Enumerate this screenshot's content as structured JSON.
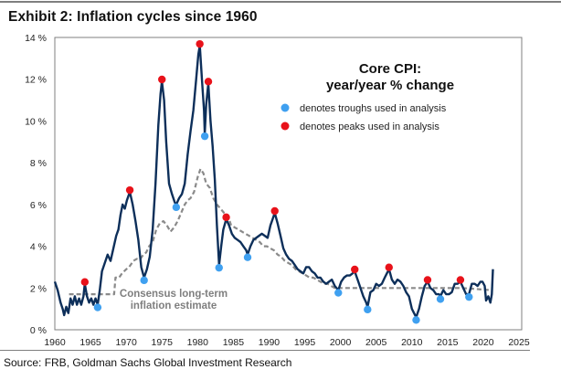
{
  "exhibit": {
    "title": "Exhibit 2: Inflation cycles since 1960",
    "source": "Source: FRB, Goldman Sachs Global Investment Research"
  },
  "chart_data": {
    "type": "line",
    "title": "Exhibit 2: Inflation cycles since 1960",
    "xlabel": "",
    "ylabel": "",
    "xlim": [
      1960,
      2025
    ],
    "ylim": [
      0,
      14
    ],
    "grid": false,
    "x_ticks": [
      "1960",
      "1965",
      "1970",
      "1975",
      "1980",
      "1985",
      "1990",
      "1995",
      "2000",
      "2005",
      "2010",
      "2015",
      "2020",
      "2025"
    ],
    "y_ticks": [
      "0 %",
      "2 %",
      "4 %",
      "6 %",
      "8 %",
      "10 %",
      "12 %",
      "14 %"
    ],
    "y_tick_values": [
      0,
      2,
      4,
      6,
      8,
      10,
      12,
      14
    ],
    "x_tick_values": [
      1960,
      1965,
      1970,
      1975,
      1980,
      1985,
      1990,
      1995,
      2000,
      2005,
      2010,
      2015,
      2020,
      2025
    ],
    "legend": {
      "title_line1": "Core CPI:",
      "title_line2": "year/year % change",
      "placement": "top-right",
      "entries": [
        {
          "label": "denotes troughs used in analysis",
          "color": "#3fa0f0"
        },
        {
          "label": "denotes peaks used in analysis",
          "color": "#e8121a"
        }
      ]
    },
    "annotation": {
      "line1": "Consensus long-term",
      "line2": "inflation estimate"
    },
    "colors": {
      "core_cpi": "#0d2f5a",
      "consensus": "#8a8a8a",
      "trough": "#3fa0f0",
      "peak": "#e8121a",
      "axis": "#7f7f7f"
    },
    "series": [
      {
        "name": "Core CPI year/year % change",
        "style": "solid",
        "points": [
          [
            1960.0,
            2.3
          ],
          [
            1960.4,
            1.9
          ],
          [
            1960.8,
            1.3
          ],
          [
            1961.1,
            1.0
          ],
          [
            1961.3,
            0.7
          ],
          [
            1961.6,
            1.1
          ],
          [
            1961.9,
            0.8
          ],
          [
            1962.2,
            1.5
          ],
          [
            1962.5,
            1.2
          ],
          [
            1962.8,
            1.6
          ],
          [
            1963.1,
            1.2
          ],
          [
            1963.4,
            1.5
          ],
          [
            1963.7,
            1.2
          ],
          [
            1964.0,
            1.6
          ],
          [
            1964.2,
            2.2
          ],
          [
            1964.5,
            1.6
          ],
          [
            1964.8,
            1.3
          ],
          [
            1965.1,
            1.5
          ],
          [
            1965.4,
            1.2
          ],
          [
            1965.7,
            1.5
          ],
          [
            1966.0,
            1.2
          ],
          [
            1966.3,
            1.9
          ],
          [
            1966.6,
            2.8
          ],
          [
            1967.0,
            3.2
          ],
          [
            1967.4,
            3.6
          ],
          [
            1967.8,
            3.3
          ],
          [
            1968.2,
            3.9
          ],
          [
            1968.6,
            4.5
          ],
          [
            1968.9,
            4.8
          ],
          [
            1969.2,
            5.5
          ],
          [
            1969.5,
            6.0
          ],
          [
            1969.8,
            5.8
          ],
          [
            1970.1,
            6.2
          ],
          [
            1970.5,
            6.6
          ],
          [
            1970.9,
            6.0
          ],
          [
            1971.3,
            5.2
          ],
          [
            1971.7,
            4.3
          ],
          [
            1972.1,
            3.0
          ],
          [
            1972.5,
            2.5
          ],
          [
            1972.9,
            2.9
          ],
          [
            1973.3,
            3.5
          ],
          [
            1973.7,
            4.8
          ],
          [
            1974.1,
            7.0
          ],
          [
            1974.5,
            9.8
          ],
          [
            1974.8,
            11.3
          ],
          [
            1975.0,
            11.9
          ],
          [
            1975.3,
            11.0
          ],
          [
            1975.6,
            9.0
          ],
          [
            1976.0,
            7.0
          ],
          [
            1976.4,
            6.5
          ],
          [
            1976.8,
            6.1
          ],
          [
            1977.0,
            6.0
          ],
          [
            1977.4,
            6.3
          ],
          [
            1977.8,
            6.5
          ],
          [
            1978.2,
            7.0
          ],
          [
            1978.6,
            8.4
          ],
          [
            1979.0,
            9.5
          ],
          [
            1979.4,
            10.5
          ],
          [
            1979.8,
            12.0
          ],
          [
            1980.1,
            13.2
          ],
          [
            1980.3,
            13.6
          ],
          [
            1980.6,
            12.0
          ],
          [
            1980.9,
            10.5
          ],
          [
            1981.0,
            9.4
          ],
          [
            1981.2,
            10.8
          ],
          [
            1981.5,
            11.8
          ],
          [
            1981.8,
            10.0
          ],
          [
            1982.1,
            8.8
          ],
          [
            1982.4,
            7.2
          ],
          [
            1982.7,
            5.0
          ],
          [
            1983.0,
            3.1
          ],
          [
            1983.3,
            4.0
          ],
          [
            1983.6,
            4.8
          ],
          [
            1984.0,
            5.3
          ],
          [
            1984.4,
            5.0
          ],
          [
            1984.8,
            4.6
          ],
          [
            1985.2,
            4.4
          ],
          [
            1985.6,
            4.3
          ],
          [
            1986.0,
            4.2
          ],
          [
            1986.4,
            4.0
          ],
          [
            1986.8,
            3.8
          ],
          [
            1987.0,
            3.6
          ],
          [
            1987.4,
            4.0
          ],
          [
            1987.8,
            4.3
          ],
          [
            1988.2,
            4.4
          ],
          [
            1988.6,
            4.5
          ],
          [
            1989.0,
            4.6
          ],
          [
            1989.4,
            4.5
          ],
          [
            1989.8,
            4.4
          ],
          [
            1990.2,
            5.0
          ],
          [
            1990.5,
            5.3
          ],
          [
            1990.8,
            5.6
          ],
          [
            1991.2,
            5.1
          ],
          [
            1991.6,
            4.5
          ],
          [
            1992.0,
            3.9
          ],
          [
            1992.4,
            3.6
          ],
          [
            1992.8,
            3.4
          ],
          [
            1993.2,
            3.3
          ],
          [
            1993.6,
            3.1
          ],
          [
            1994.0,
            2.9
          ],
          [
            1994.4,
            2.8
          ],
          [
            1994.8,
            2.7
          ],
          [
            1995.2,
            3.0
          ],
          [
            1995.6,
            3.0
          ],
          [
            1996.0,
            2.8
          ],
          [
            1996.4,
            2.7
          ],
          [
            1996.8,
            2.5
          ],
          [
            1997.2,
            2.5
          ],
          [
            1997.6,
            2.3
          ],
          [
            1998.0,
            2.2
          ],
          [
            1998.4,
            2.3
          ],
          [
            1998.8,
            2.4
          ],
          [
            1999.2,
            2.1
          ],
          [
            1999.7,
            1.9
          ],
          [
            2000.1,
            2.3
          ],
          [
            2000.5,
            2.5
          ],
          [
            2000.9,
            2.6
          ],
          [
            2001.3,
            2.6
          ],
          [
            2001.7,
            2.7
          ],
          [
            2002.0,
            2.8
          ],
          [
            2002.4,
            2.4
          ],
          [
            2002.8,
            2.0
          ],
          [
            2003.2,
            1.6
          ],
          [
            2003.6,
            1.3
          ],
          [
            2003.8,
            1.1
          ],
          [
            2004.2,
            1.8
          ],
          [
            2004.6,
            1.9
          ],
          [
            2005.0,
            2.2
          ],
          [
            2005.4,
            2.1
          ],
          [
            2005.8,
            2.2
          ],
          [
            2006.2,
            2.5
          ],
          [
            2006.5,
            2.7
          ],
          [
            2006.8,
            2.9
          ],
          [
            2007.2,
            2.4
          ],
          [
            2007.6,
            2.2
          ],
          [
            2008.0,
            2.4
          ],
          [
            2008.4,
            2.3
          ],
          [
            2008.8,
            2.1
          ],
          [
            2009.2,
            1.8
          ],
          [
            2009.6,
            1.6
          ],
          [
            2010.0,
            1.0
          ],
          [
            2010.3,
            0.8
          ],
          [
            2010.6,
            0.6
          ],
          [
            2011.0,
            1.0
          ],
          [
            2011.4,
            1.6
          ],
          [
            2011.8,
            2.1
          ],
          [
            2012.2,
            2.3
          ],
          [
            2012.6,
            2.0
          ],
          [
            2013.0,
            1.9
          ],
          [
            2013.4,
            1.7
          ],
          [
            2013.8,
            1.7
          ],
          [
            2014.0,
            1.6
          ],
          [
            2014.4,
            1.9
          ],
          [
            2014.8,
            1.7
          ],
          [
            2015.2,
            1.7
          ],
          [
            2015.6,
            1.8
          ],
          [
            2016.0,
            2.2
          ],
          [
            2016.4,
            2.2
          ],
          [
            2016.8,
            2.3
          ],
          [
            2017.2,
            2.0
          ],
          [
            2017.6,
            1.7
          ],
          [
            2018.0,
            1.7
          ],
          [
            2018.4,
            2.2
          ],
          [
            2018.8,
            2.2
          ],
          [
            2019.2,
            2.1
          ],
          [
            2019.6,
            2.3
          ],
          [
            2019.9,
            2.3
          ],
          [
            2020.2,
            2.1
          ],
          [
            2020.4,
            1.4
          ],
          [
            2020.7,
            1.6
          ],
          [
            2021.0,
            1.3
          ],
          [
            2021.2,
            1.7
          ],
          [
            2021.35,
            2.9
          ]
        ]
      },
      {
        "name": "Consensus long-term inflation estimate",
        "style": "dashed",
        "points": [
          [
            1962.0,
            1.7
          ],
          [
            1966.3,
            1.7
          ],
          [
            1967.5,
            1.7
          ],
          [
            1968.3,
            1.7
          ],
          [
            1968.5,
            2.5
          ],
          [
            1969.0,
            2.5
          ],
          [
            1969.4,
            2.7
          ],
          [
            1970.0,
            2.9
          ],
          [
            1970.4,
            3.0
          ],
          [
            1971.0,
            3.3
          ],
          [
            1971.5,
            3.4
          ],
          [
            1972.0,
            3.4
          ],
          [
            1972.4,
            3.6
          ],
          [
            1972.8,
            3.7
          ],
          [
            1973.2,
            4.0
          ],
          [
            1973.7,
            4.2
          ],
          [
            1974.2,
            4.8
          ],
          [
            1974.7,
            5.1
          ],
          [
            1975.2,
            5.2
          ],
          [
            1975.7,
            5.0
          ],
          [
            1976.2,
            4.7
          ],
          [
            1976.7,
            4.9
          ],
          [
            1977.2,
            5.2
          ],
          [
            1977.7,
            5.6
          ],
          [
            1978.2,
            6.0
          ],
          [
            1978.6,
            6.2
          ],
          [
            1979.0,
            6.3
          ],
          [
            1979.5,
            6.6
          ],
          [
            1980.0,
            7.3
          ],
          [
            1980.4,
            7.7
          ],
          [
            1980.8,
            7.5
          ],
          [
            1981.2,
            7.0
          ],
          [
            1981.7,
            6.8
          ],
          [
            1982.2,
            6.3
          ],
          [
            1982.7,
            6.0
          ],
          [
            1983.2,
            5.8
          ],
          [
            1983.7,
            5.6
          ],
          [
            1984.2,
            5.5
          ],
          [
            1984.7,
            5.0
          ],
          [
            1985.2,
            4.9
          ],
          [
            1985.7,
            4.8
          ],
          [
            1986.2,
            4.7
          ],
          [
            1986.7,
            4.6
          ],
          [
            1987.2,
            4.5
          ],
          [
            1987.7,
            4.4
          ],
          [
            1988.2,
            4.3
          ],
          [
            1988.7,
            4.2
          ],
          [
            1989.2,
            4.0
          ],
          [
            1989.7,
            4.0
          ],
          [
            1990.2,
            3.9
          ],
          [
            1990.7,
            3.8
          ],
          [
            1991.2,
            3.6
          ],
          [
            1991.7,
            3.5
          ],
          [
            1992.2,
            3.3
          ],
          [
            1992.7,
            3.2
          ],
          [
            1993.2,
            3.1
          ],
          [
            1993.7,
            2.9
          ],
          [
            1994.2,
            2.8
          ],
          [
            1994.7,
            2.7
          ],
          [
            1995.2,
            2.6
          ],
          [
            1995.7,
            2.5
          ],
          [
            1996.2,
            2.5
          ],
          [
            1996.7,
            2.4
          ],
          [
            1997.2,
            2.3
          ],
          [
            1997.7,
            2.2
          ],
          [
            1998.2,
            2.2
          ],
          [
            1998.7,
            2.1
          ],
          [
            1999.2,
            2.0
          ],
          [
            1999.7,
            2.0
          ],
          [
            2000.5,
            2.0
          ],
          [
            2001.5,
            2.0
          ],
          [
            2003.0,
            2.0
          ],
          [
            2005.0,
            2.0
          ],
          [
            2007.0,
            2.0
          ],
          [
            2009.0,
            2.0
          ],
          [
            2011.0,
            2.0
          ],
          [
            2013.0,
            2.0
          ],
          [
            2015.0,
            2.0
          ],
          [
            2017.0,
            2.0
          ],
          [
            2019.0,
            1.95
          ],
          [
            2021.0,
            1.9
          ]
        ]
      }
    ],
    "peaks": [
      {
        "x": 1964.2,
        "y": 2.2
      },
      {
        "x": 1970.5,
        "y": 6.6
      },
      {
        "x": 1975.0,
        "y": 11.9
      },
      {
        "x": 1980.3,
        "y": 13.6
      },
      {
        "x": 1981.5,
        "y": 11.8
      },
      {
        "x": 1984.0,
        "y": 5.3
      },
      {
        "x": 1990.8,
        "y": 5.6
      },
      {
        "x": 2002.0,
        "y": 2.8
      },
      {
        "x": 2006.8,
        "y": 2.9
      },
      {
        "x": 2012.2,
        "y": 2.3
      },
      {
        "x": 2016.8,
        "y": 2.3
      }
    ],
    "troughs": [
      {
        "x": 1966.0,
        "y": 1.2
      },
      {
        "x": 1972.5,
        "y": 2.5
      },
      {
        "x": 1977.0,
        "y": 6.0
      },
      {
        "x": 1981.0,
        "y": 9.4
      },
      {
        "x": 1983.0,
        "y": 3.1
      },
      {
        "x": 1987.0,
        "y": 3.6
      },
      {
        "x": 1999.7,
        "y": 1.9
      },
      {
        "x": 2003.8,
        "y": 1.1
      },
      {
        "x": 2010.6,
        "y": 0.6
      },
      {
        "x": 2014.0,
        "y": 1.6
      },
      {
        "x": 2018.0,
        "y": 1.7
      }
    ]
  }
}
